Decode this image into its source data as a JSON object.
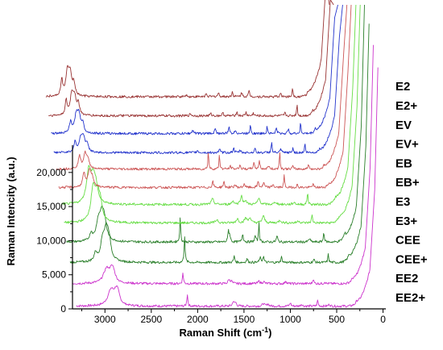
{
  "chart_data": {
    "type": "line",
    "xlabel": "Raman Shift (cm",
    "xlabel_sup": "-1",
    "xlabel_end": ")",
    "ylabel": "Raman Intencity (a.u.)",
    "x_reversed": true,
    "xlim": [
      3350,
      -30
    ],
    "ylim": [
      0,
      24000
    ],
    "x_ticks": [
      3000,
      2500,
      2000,
      1500,
      1000,
      500,
      0
    ],
    "x_tick_labels": [
      "3000",
      "2500",
      "2000",
      "1500",
      "1000",
      "500",
      "0"
    ],
    "y_ticks": [
      0,
      5000,
      10000,
      15000,
      20000
    ],
    "y_tick_labels": [
      "0",
      "5,000",
      "10,000",
      "15,000",
      "20,000"
    ],
    "grid": false,
    "series": [
      {
        "name": "EE2+",
        "color": "#cc33cc",
        "offset": 400,
        "start": 3310,
        "peaks": [
          [
            2935,
            2200,
            40
          ],
          [
            2880,
            1500,
            30
          ],
          [
            2860,
            1100,
            25
          ],
          [
            2111,
            1800,
            6
          ],
          [
            1615,
            700,
            10
          ],
          [
            1590,
            500,
            10
          ],
          [
            1290,
            400,
            12
          ],
          [
            1240,
            350,
            10
          ],
          [
            1000,
            500,
            8
          ],
          [
            880,
            300,
            10
          ],
          [
            705,
            900,
            6
          ],
          [
            580,
            300,
            8
          ],
          [
            280,
            300,
            15
          ]
        ]
      },
      {
        "name": "EE2",
        "color": "#cc33cc",
        "offset": 3700,
        "start": 3300,
        "peaks": [
          [
            2935,
            2000,
            40
          ],
          [
            2880,
            1400,
            30
          ],
          [
            2860,
            1000,
            25
          ],
          [
            2111,
            1600,
            6
          ],
          [
            1615,
            600,
            10
          ],
          [
            1590,
            450,
            10
          ],
          [
            1290,
            350,
            12
          ],
          [
            1240,
            300,
            10
          ],
          [
            1000,
            450,
            8
          ],
          [
            705,
            800,
            6
          ],
          [
            580,
            280,
            8
          ],
          [
            280,
            280,
            15
          ]
        ]
      },
      {
        "name": "CEE+",
        "color": "#2a7f2a",
        "offset": 6800,
        "start": 3280,
        "peaks": [
          [
            3005,
            1200,
            18
          ],
          [
            2930,
            2500,
            25
          ],
          [
            2890,
            4200,
            30
          ],
          [
            2860,
            2200,
            25
          ],
          [
            2045,
            4000,
            6
          ],
          [
            1510,
            900,
            8
          ],
          [
            1370,
            500,
            10
          ],
          [
            1230,
            700,
            8
          ],
          [
            1195,
            900,
            8
          ],
          [
            1000,
            800,
            8
          ],
          [
            650,
            400,
            10
          ],
          [
            495,
            1200,
            6
          ],
          [
            270,
            500,
            15
          ]
        ]
      },
      {
        "name": "CEE",
        "color": "#2a7f2a",
        "offset": 9800,
        "start": 3270,
        "peaks": [
          [
            3005,
            1100,
            18
          ],
          [
            2930,
            2300,
            25
          ],
          [
            2890,
            3800,
            30
          ],
          [
            2860,
            2000,
            25
          ],
          [
            2045,
            3500,
            6
          ],
          [
            1525,
            1800,
            6
          ],
          [
            1510,
            1000,
            8
          ],
          [
            1370,
            1200,
            8
          ],
          [
            1235,
            900,
            8
          ],
          [
            1195,
            3000,
            5
          ],
          [
            1000,
            900,
            8
          ],
          [
            650,
            500,
            10
          ],
          [
            495,
            1500,
            6
          ],
          [
            270,
            600,
            15
          ]
        ]
      },
      {
        "name": "E3+",
        "color": "#66dd44",
        "offset": 12600,
        "start": 3250,
        "peaks": [
          [
            2935,
            5000,
            30
          ],
          [
            2890,
            3000,
            25
          ],
          [
            2860,
            2500,
            25
          ],
          [
            1600,
            500,
            15
          ],
          [
            1380,
            600,
            15
          ],
          [
            1290,
            700,
            15
          ],
          [
            1245,
            800,
            12
          ],
          [
            1100,
            1000,
            15
          ],
          [
            920,
            400,
            15
          ],
          [
            720,
            300,
            15
          ],
          [
            575,
            1100,
            7
          ],
          [
            270,
            500,
            20
          ]
        ]
      },
      {
        "name": "E3",
        "color": "#66dd44",
        "offset": 15300,
        "start": 3230,
        "peaks": [
          [
            2935,
            4800,
            30
          ],
          [
            2890,
            2800,
            25
          ],
          [
            2860,
            2400,
            25
          ],
          [
            1600,
            800,
            15
          ],
          [
            1380,
            500,
            15
          ],
          [
            1290,
            1300,
            12
          ],
          [
            1245,
            600,
            12
          ],
          [
            1100,
            900,
            15
          ],
          [
            920,
            350,
            15
          ],
          [
            720,
            300,
            15
          ],
          [
            575,
            1800,
            6
          ],
          [
            270,
            500,
            20
          ]
        ]
      },
      {
        "name": "EB+",
        "color": "#cc5555",
        "offset": 17800,
        "start": 3210,
        "peaks": [
          [
            2940,
            2000,
            15
          ],
          [
            2880,
            2300,
            20
          ],
          [
            2850,
            1200,
            20
          ],
          [
            1550,
            900,
            8
          ],
          [
            1430,
            800,
            8
          ],
          [
            1310,
            400,
            10
          ],
          [
            1210,
            600,
            8
          ],
          [
            1060,
            900,
            8
          ],
          [
            1000,
            700,
            8
          ],
          [
            900,
            500,
            8
          ],
          [
            780,
            1800,
            5
          ],
          [
            640,
            400,
            8
          ],
          [
            470,
            500,
            8
          ],
          [
            300,
            300,
            12
          ]
        ]
      },
      {
        "name": "EB",
        "color": "#cc5555",
        "offset": 20500,
        "start": 3190,
        "peaks": [
          [
            2940,
            1800,
            15
          ],
          [
            2880,
            2100,
            20
          ],
          [
            2850,
            1100,
            20
          ],
          [
            1550,
            2800,
            5
          ],
          [
            1430,
            2300,
            5
          ],
          [
            1310,
            400,
            10
          ],
          [
            1210,
            600,
            8
          ],
          [
            1060,
            900,
            8
          ],
          [
            1000,
            1300,
            7
          ],
          [
            900,
            500,
            8
          ],
          [
            780,
            3200,
            4
          ],
          [
            640,
            400,
            8
          ],
          [
            470,
            600,
            8
          ],
          [
            300,
            300,
            12
          ]
        ]
      },
      {
        "name": "EV+",
        "color": "#2233cc",
        "offset": 22900,
        "start": 3170,
        "peaks": [
          [
            2940,
            1500,
            15
          ],
          [
            2880,
            1800,
            20
          ],
          [
            2850,
            2100,
            20
          ],
          [
            2810,
            1200,
            15
          ],
          [
            1620,
            300,
            10
          ],
          [
            1380,
            400,
            10
          ],
          [
            1230,
            700,
            8
          ],
          [
            1160,
            400,
            8
          ],
          [
            1000,
            600,
            8
          ],
          [
            820,
            1800,
            5
          ],
          [
            720,
            500,
            8
          ],
          [
            590,
            700,
            6
          ],
          [
            460,
            1400,
            5
          ],
          [
            300,
            400,
            10
          ]
        ]
      },
      {
        "name": "EV",
        "color": "#2233cc",
        "offset": 25700,
        "start": 3150,
        "peaks": [
          [
            2940,
            1600,
            15
          ],
          [
            2880,
            2400,
            20
          ],
          [
            2850,
            2600,
            20
          ],
          [
            2810,
            1300,
            15
          ],
          [
            1620,
            500,
            10
          ],
          [
            1380,
            600,
            10
          ],
          [
            1230,
            900,
            8
          ],
          [
            1160,
            500,
            8
          ],
          [
            1000,
            1400,
            6
          ],
          [
            820,
            1100,
            6
          ],
          [
            720,
            800,
            8
          ],
          [
            590,
            900,
            6
          ],
          [
            460,
            1700,
            5
          ],
          [
            300,
            500,
            10
          ]
        ]
      },
      {
        "name": "E2+",
        "color": "#993333",
        "offset": 28300,
        "start": 3130,
        "peaks": [
          [
            2940,
            2100,
            12
          ],
          [
            2880,
            2900,
            20
          ],
          [
            2850,
            2500,
            20
          ],
          [
            2810,
            1600,
            15
          ],
          [
            1600,
            300,
            10
          ],
          [
            1380,
            300,
            10
          ],
          [
            1250,
            400,
            10
          ],
          [
            1100,
            600,
            8
          ],
          [
            1000,
            500,
            8
          ],
          [
            920,
            400,
            8
          ],
          [
            580,
            400,
            8
          ],
          [
            450,
            1800,
            5
          ],
          [
            280,
            300,
            10
          ]
        ]
      },
      {
        "name": "E2",
        "color": "#993333",
        "offset": 31100,
        "start": 3110,
        "peaks": [
          [
            2940,
            2400,
            12
          ],
          [
            2880,
            3400,
            20
          ],
          [
            2850,
            3000,
            20
          ],
          [
            2810,
            1800,
            15
          ],
          [
            1600,
            300,
            10
          ],
          [
            1380,
            400,
            10
          ],
          [
            1250,
            500,
            10
          ],
          [
            1100,
            700,
            8
          ],
          [
            1000,
            600,
            8
          ],
          [
            920,
            800,
            8
          ],
          [
            580,
            500,
            8
          ],
          [
            450,
            1500,
            5
          ],
          [
            280,
            400,
            10
          ]
        ]
      }
    ]
  }
}
